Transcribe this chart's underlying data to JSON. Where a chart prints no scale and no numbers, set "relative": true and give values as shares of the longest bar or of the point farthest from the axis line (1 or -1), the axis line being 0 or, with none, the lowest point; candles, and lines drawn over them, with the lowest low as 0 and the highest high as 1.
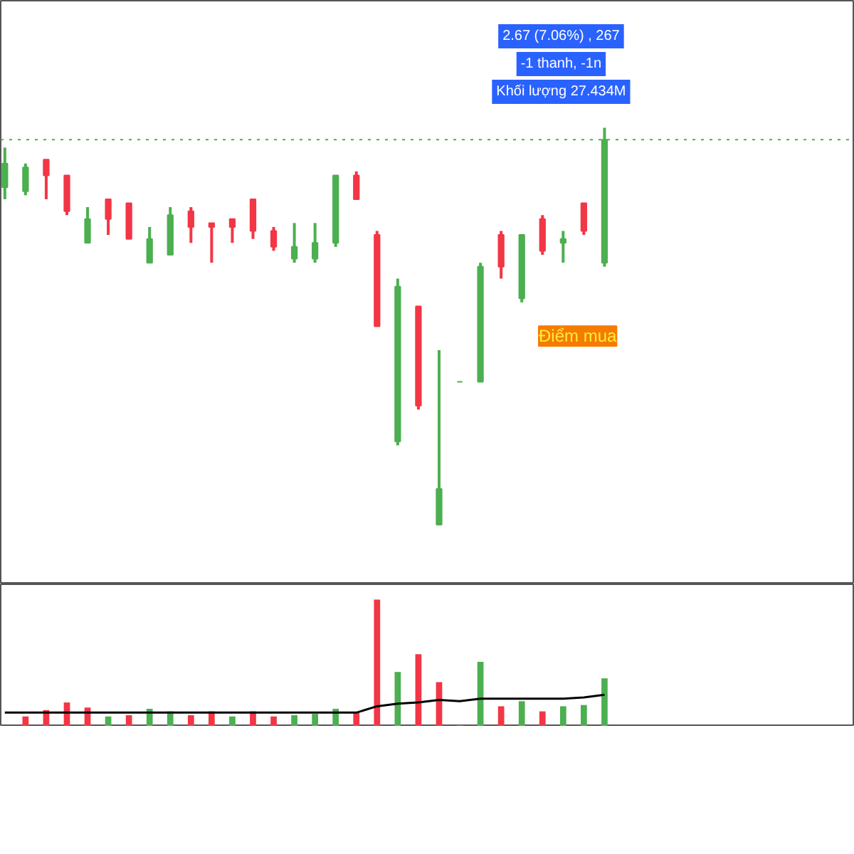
{
  "chart_data": [
    {
      "type": "candlestick",
      "relative": true,
      "categories": [
        null,
        null,
        null,
        null,
        null,
        null,
        null,
        null,
        null,
        null,
        null,
        null,
        null,
        null,
        null,
        null,
        null,
        null,
        null,
        null,
        null,
        null,
        null,
        null,
        null,
        null,
        null,
        null,
        null,
        null
      ],
      "ohlc": [
        [
          0.85,
          0.95,
          0.82,
          0.91
        ],
        [
          0.84,
          0.91,
          0.83,
          0.9
        ],
        [
          0.92,
          0.92,
          0.82,
          0.88
        ],
        [
          0.88,
          0.88,
          0.78,
          0.79
        ],
        [
          0.71,
          0.8,
          0.71,
          0.77
        ],
        [
          0.82,
          0.82,
          0.73,
          0.77
        ],
        [
          0.81,
          0.81,
          0.72,
          0.72
        ],
        [
          0.66,
          0.75,
          0.66,
          0.72
        ],
        [
          0.68,
          0.8,
          0.68,
          0.78
        ],
        [
          0.79,
          0.8,
          0.71,
          0.75
        ],
        [
          0.76,
          0.76,
          0.66,
          0.75
        ],
        [
          0.77,
          0.77,
          0.71,
          0.75
        ],
        [
          0.82,
          0.82,
          0.72,
          0.74
        ],
        [
          0.74,
          0.75,
          0.69,
          0.7
        ],
        [
          0.67,
          0.76,
          0.66,
          0.7
        ],
        [
          0.67,
          0.76,
          0.66,
          0.71
        ],
        [
          0.71,
          0.88,
          0.7,
          0.88
        ],
        [
          0.88,
          0.89,
          0.82,
          0.82
        ],
        [
          0.73,
          0.74,
          0.5,
          0.5
        ],
        [
          0.21,
          0.62,
          0.2,
          0.6
        ],
        [
          0.55,
          0.55,
          0.29,
          0.3
        ],
        [
          0.0,
          0.44,
          0.0,
          0.09
        ],
        [
          0.36,
          0.36,
          0.36,
          0.36
        ],
        [
          0.36,
          0.66,
          0.36,
          0.65
        ],
        [
          0.73,
          0.74,
          0.62,
          0.65
        ],
        [
          0.57,
          0.73,
          0.56,
          0.73
        ],
        [
          0.77,
          0.78,
          0.68,
          0.69
        ],
        [
          0.71,
          0.74,
          0.66,
          0.72
        ],
        [
          0.81,
          0.81,
          0.73,
          0.74
        ],
        [
          0.66,
          1.0,
          0.65,
          0.97
        ]
      ],
      "colors": [
        "#4caf50",
        "#4caf50",
        "#f23645",
        "#f23645",
        "#4caf50",
        "#f23645",
        "#f23645",
        "#4caf50",
        "#4caf50",
        "#f23645",
        "#f23645",
        "#f23645",
        "#f23645",
        "#f23645",
        "#4caf50",
        "#4caf50",
        "#4caf50",
        "#f23645",
        "#f23645",
        "#4caf50",
        "#f23645",
        "#4caf50",
        "#4caf50",
        "#4caf50",
        "#f23645",
        "#4caf50",
        "#f23645",
        "#4caf50",
        "#f23645",
        "#4caf50"
      ],
      "ref_lines": [
        {
          "axis": "y",
          "value": 0.97,
          "color": "#4caf50",
          "line_style": "dotted"
        }
      ],
      "annotations": [
        "2.67 (7.06%) , 267",
        "-1 thanh, -1n",
        "Khối lượng 27.434M",
        "Điểm mua"
      ]
    },
    {
      "type": "bar",
      "relative": true,
      "categories": [
        null,
        null,
        null,
        null,
        null,
        null,
        null,
        null,
        null,
        null,
        null,
        null,
        null,
        null,
        null,
        null,
        null,
        null,
        null,
        null,
        null,
        null,
        null,
        null,
        null,
        null,
        null,
        null,
        null,
        null
      ],
      "series": [
        {
          "type": "bar",
          "values": [
            null,
            0.08,
            0.13,
            0.19,
            0.15,
            0.08,
            0.09,
            0.14,
            0.12,
            0.09,
            0.12,
            0.08,
            0.12,
            0.08,
            0.09,
            0.1,
            0.14,
            0.11,
            1.0,
            0.43,
            0.57,
            0.35,
            0.01,
            0.51,
            0.16,
            0.2,
            0.12,
            0.16,
            0.17,
            0.38
          ],
          "colors": [
            "#f23645",
            "#f23645",
            "#f23645",
            "#f23645",
            "#f23645",
            "#4caf50",
            "#f23645",
            "#4caf50",
            "#4caf50",
            "#f23645",
            "#f23645",
            "#4caf50",
            "#f23645",
            "#f23645",
            "#4caf50",
            "#4caf50",
            "#4caf50",
            "#f23645",
            "#f23645",
            "#4caf50",
            "#f23645",
            "#f23645",
            "#4caf50",
            "#4caf50",
            "#f23645",
            "#4caf50",
            "#f23645",
            "#4caf50",
            "#4caf50",
            "#4caf50"
          ]
        },
        {
          "type": "line",
          "color": "#000000",
          "values": [
            0.11,
            0.11,
            0.11,
            0.11,
            0.11,
            0.11,
            0.11,
            0.11,
            0.11,
            0.11,
            0.11,
            0.11,
            0.11,
            0.11,
            0.11,
            0.11,
            0.11,
            0.11,
            0.16,
            0.18,
            0.19,
            0.21,
            0.2,
            0.22,
            0.22,
            0.22,
            0.22,
            0.22,
            0.23,
            0.25
          ]
        }
      ]
    }
  ]
}
